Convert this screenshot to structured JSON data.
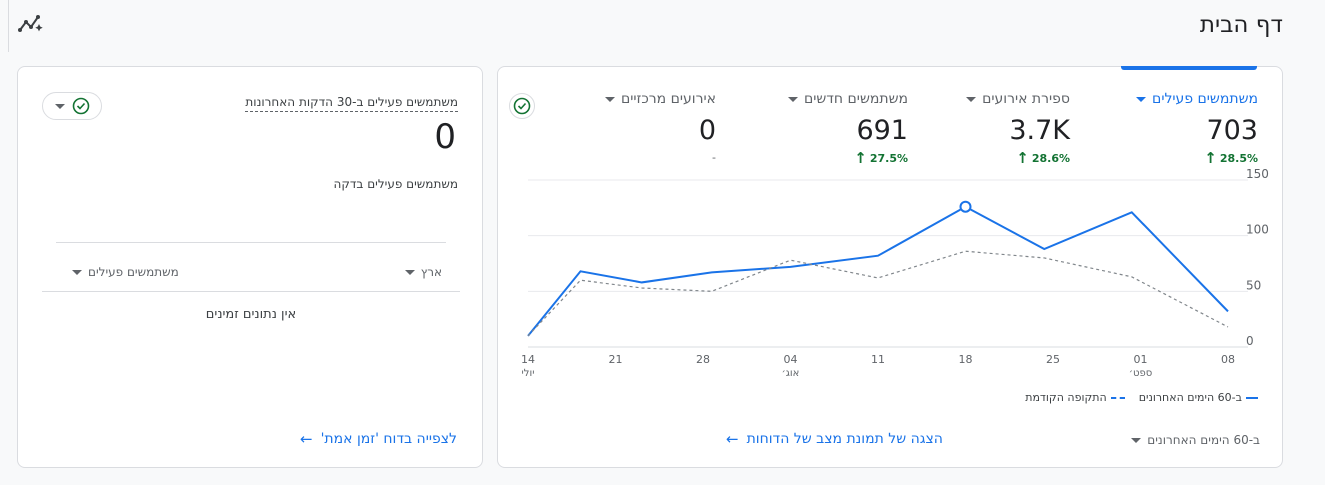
{
  "page": {
    "title": "דף הבית"
  },
  "main_card": {
    "metrics": [
      {
        "label": "משתמשים פעילים",
        "value": "703",
        "change": "28.5%",
        "active": true
      },
      {
        "label": "ספירת אירועים",
        "value": "3.7K",
        "change": "28.6%",
        "active": false
      },
      {
        "label": "משתמשים חדשים",
        "value": "691",
        "change": "27.5%",
        "active": false
      },
      {
        "label": "אירועים מרכזיים",
        "value": "0",
        "change": "-",
        "active": false
      }
    ],
    "legend": {
      "current": "ב-60 הימים האחרונים",
      "previous": "התקופה הקודמת"
    },
    "period_select": "ב-60 הימים האחרונים",
    "view_link": "הצגה של תמונת מצב של הדוחות"
  },
  "realtime_card": {
    "label": "משתמשים פעילים ב-30 הדקות האחרונות",
    "value": "0",
    "sub_label": "משתמשים פעילים בדקה",
    "col_country": "ארץ",
    "col_users": "משתמשים פעילים",
    "empty": "אין נתונים זמינים",
    "link": "לצפייה בדוח 'זמן אמת'"
  },
  "colors": {
    "accent": "#1a73e8",
    "positive": "#137333",
    "grid": "#e8eaed",
    "previous": "#80868b"
  },
  "icons": [
    "insights-icon",
    "check-circle-icon",
    "caret-down-icon",
    "arrow-up-icon",
    "arrow-left-icon"
  ],
  "chart_data": {
    "type": "line",
    "x": [
      "14",
      "21",
      "28",
      "04",
      "11",
      "18",
      "25",
      "01",
      "08"
    ],
    "x_sublabels": [
      "יולי",
      "",
      "",
      "אוג׳",
      "",
      "",
      "",
      "ספט׳",
      ""
    ],
    "y_ticks": [
      0,
      50,
      100,
      150
    ],
    "ylim": [
      0,
      150
    ],
    "series": [
      {
        "name": "ב-60 הימים האחרונים",
        "style": "solid",
        "points": [
          [
            0,
            10
          ],
          [
            0.6,
            68
          ],
          [
            1.3,
            58
          ],
          [
            2.1,
            67
          ],
          [
            3.0,
            72
          ],
          [
            4.0,
            82
          ],
          [
            5.0,
            126
          ],
          [
            5.9,
            88
          ],
          [
            6.9,
            121
          ],
          [
            8.0,
            32
          ]
        ]
      },
      {
        "name": "התקופה הקודמת",
        "style": "dashed",
        "points": [
          [
            0,
            10
          ],
          [
            0.6,
            60
          ],
          [
            1.3,
            53
          ],
          [
            2.1,
            50
          ],
          [
            3.0,
            78
          ],
          [
            4.0,
            62
          ],
          [
            5.0,
            86
          ],
          [
            5.9,
            80
          ],
          [
            6.9,
            63
          ],
          [
            8.0,
            18
          ]
        ]
      }
    ],
    "highlight": [
      5.0,
      126
    ]
  }
}
